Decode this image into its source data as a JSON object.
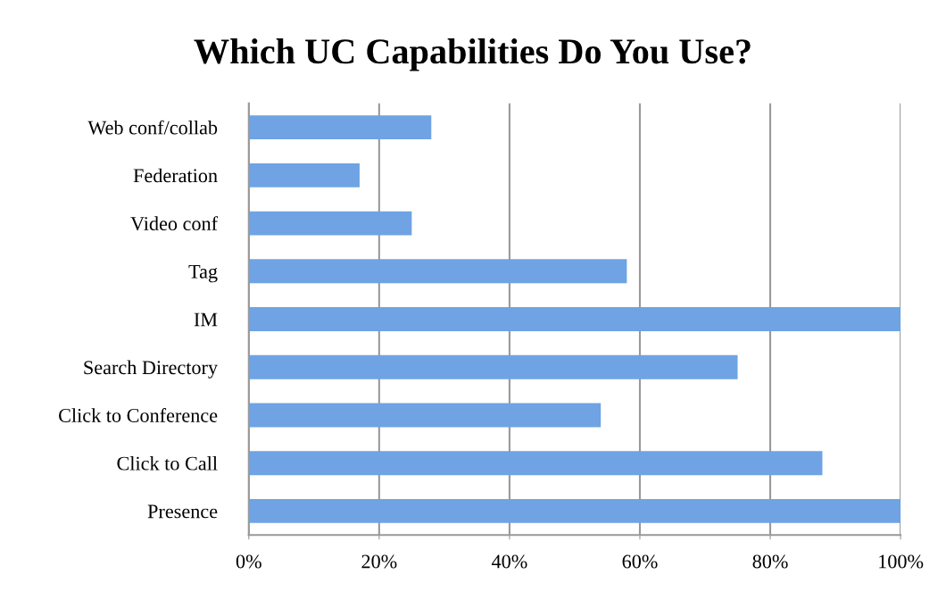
{
  "chart_data": {
    "type": "bar",
    "orientation": "horizontal",
    "title": "Which UC Capabilities Do You Use?",
    "categories": [
      "Web conf/collab",
      "Federation",
      "Video conf",
      "Tag",
      "IM",
      "Search Directory",
      "Click to Conference",
      "Click to Call",
      "Presence"
    ],
    "values": [
      28,
      17,
      25,
      58,
      100,
      75,
      54,
      88,
      100
    ],
    "color": "#6fa3e3",
    "xlim": [
      0,
      100
    ],
    "xticks": [
      {
        "value": 0,
        "label": "0%"
      },
      {
        "value": 20,
        "label": "20%"
      },
      {
        "value": 40,
        "label": "40%"
      },
      {
        "value": 60,
        "label": "60%"
      },
      {
        "value": 80,
        "label": "80%"
      },
      {
        "value": 100,
        "label": "100%"
      }
    ],
    "grid": "x",
    "legend": false
  }
}
